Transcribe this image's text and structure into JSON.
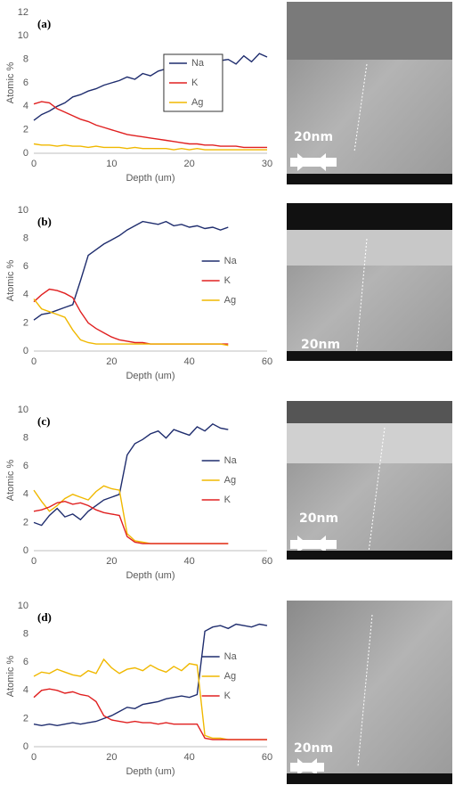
{
  "chart_data": [
    {
      "type": "line",
      "label": "(a)",
      "x_label": "Depth (um)",
      "y_label": "Atomic %",
      "legend": "center",
      "xlim": [
        0,
        30
      ],
      "xticks": [
        0,
        10,
        20,
        30
      ],
      "ylim": [
        0,
        12
      ],
      "yticks": [
        0,
        2,
        4,
        6,
        8,
        10,
        12
      ],
      "x": [
        0,
        1,
        2,
        3,
        4,
        5,
        6,
        7,
        8,
        9,
        10,
        11,
        12,
        13,
        14,
        15,
        16,
        17,
        18,
        19,
        20,
        21,
        22,
        23,
        24,
        25,
        26,
        27,
        28,
        29,
        30
      ],
      "series": [
        {
          "name": "Na",
          "color": "#1f2d6e",
          "values": [
            2.8,
            3.3,
            3.6,
            4.0,
            4.3,
            4.8,
            5.0,
            5.3,
            5.5,
            5.8,
            6.0,
            6.2,
            6.5,
            6.3,
            6.8,
            6.6,
            7.0,
            7.2,
            6.9,
            7.3,
            7.5,
            7.2,
            7.8,
            7.4,
            7.9,
            8.0,
            7.6,
            8.3,
            7.8,
            8.5,
            8.2
          ]
        },
        {
          "name": "K",
          "color": "#e02020",
          "values": [
            4.2,
            4.4,
            4.3,
            3.8,
            3.5,
            3.2,
            2.9,
            2.7,
            2.4,
            2.2,
            2.0,
            1.8,
            1.6,
            1.5,
            1.4,
            1.3,
            1.2,
            1.1,
            1.0,
            0.9,
            0.8,
            0.8,
            0.7,
            0.7,
            0.6,
            0.6,
            0.6,
            0.5,
            0.5,
            0.5,
            0.5
          ]
        },
        {
          "name": "Ag",
          "color": "#f0b800",
          "values": [
            0.8,
            0.7,
            0.7,
            0.6,
            0.7,
            0.6,
            0.6,
            0.5,
            0.6,
            0.5,
            0.5,
            0.5,
            0.4,
            0.5,
            0.4,
            0.4,
            0.4,
            0.4,
            0.3,
            0.4,
            0.3,
            0.4,
            0.3,
            0.3,
            0.3,
            0.3,
            0.3,
            0.3,
            0.3,
            0.3,
            0.3
          ]
        }
      ]
    },
    {
      "type": "line",
      "label": "(b)",
      "x_label": "Depth (um)",
      "y_label": "Atomic %",
      "legend": "right",
      "xlim": [
        0,
        60
      ],
      "xticks": [
        0,
        20,
        40,
        60
      ],
      "ylim": [
        0,
        10
      ],
      "yticks": [
        0,
        2,
        4,
        6,
        8,
        10
      ],
      "x": [
        0,
        2,
        4,
        6,
        8,
        10,
        12,
        14,
        16,
        18,
        20,
        22,
        24,
        26,
        28,
        30,
        32,
        34,
        36,
        38,
        40,
        42,
        44,
        46,
        48,
        50
      ],
      "series": [
        {
          "name": "Na",
          "color": "#1f2d6e",
          "values": [
            2.2,
            2.6,
            2.7,
            2.9,
            3.1,
            3.3,
            5.0,
            6.8,
            7.2,
            7.6,
            7.9,
            8.2,
            8.6,
            8.9,
            9.2,
            9.1,
            9.0,
            9.2,
            8.9,
            9.0,
            8.8,
            8.9,
            8.7,
            8.8,
            8.6,
            8.8
          ]
        },
        {
          "name": "K",
          "color": "#e02020",
          "values": [
            3.5,
            4.0,
            4.4,
            4.3,
            4.1,
            3.8,
            2.8,
            2.0,
            1.6,
            1.3,
            1.0,
            0.8,
            0.7,
            0.6,
            0.6,
            0.5,
            0.5,
            0.5,
            0.5,
            0.5,
            0.5,
            0.5,
            0.5,
            0.5,
            0.5,
            0.5
          ]
        },
        {
          "name": "Ag",
          "color": "#f0b800",
          "values": [
            3.7,
            3.0,
            2.8,
            2.6,
            2.4,
            1.5,
            0.8,
            0.6,
            0.5,
            0.5,
            0.5,
            0.5,
            0.5,
            0.5,
            0.5,
            0.5,
            0.5,
            0.5,
            0.5,
            0.5,
            0.5,
            0.5,
            0.5,
            0.5,
            0.5,
            0.4
          ]
        }
      ]
    },
    {
      "type": "line",
      "label": "(c)",
      "x_label": "Depth (um)",
      "y_label": "Atomic %",
      "legend": "right",
      "xlim": [
        0,
        60
      ],
      "xticks": [
        0,
        20,
        40,
        60
      ],
      "ylim": [
        0,
        10
      ],
      "yticks": [
        0,
        2,
        4,
        6,
        8,
        10
      ],
      "x": [
        0,
        2,
        4,
        6,
        8,
        10,
        12,
        14,
        16,
        18,
        20,
        22,
        24,
        26,
        28,
        30,
        32,
        34,
        36,
        38,
        40,
        42,
        44,
        46,
        48,
        50
      ],
      "series": [
        {
          "name": "Na",
          "color": "#1f2d6e",
          "values": [
            2.0,
            1.8,
            2.5,
            3.0,
            2.4,
            2.6,
            2.2,
            2.8,
            3.2,
            3.6,
            3.8,
            4.0,
            6.8,
            7.6,
            7.9,
            8.3,
            8.5,
            8.0,
            8.6,
            8.4,
            8.2,
            8.8,
            8.5,
            9.0,
            8.7,
            8.6
          ]
        },
        {
          "name": "Ag",
          "color": "#f0b800",
          "values": [
            4.3,
            3.5,
            2.8,
            3.2,
            3.7,
            4.0,
            3.8,
            3.6,
            4.2,
            4.6,
            4.4,
            4.3,
            1.2,
            0.7,
            0.6,
            0.5,
            0.5,
            0.5,
            0.5,
            0.5,
            0.5,
            0.5,
            0.5,
            0.5,
            0.5,
            0.5
          ]
        },
        {
          "name": "K",
          "color": "#e02020",
          "values": [
            2.8,
            2.9,
            3.1,
            3.4,
            3.5,
            3.3,
            3.4,
            3.2,
            2.9,
            2.7,
            2.6,
            2.5,
            1.0,
            0.6,
            0.5,
            0.5,
            0.5,
            0.5,
            0.5,
            0.5,
            0.5,
            0.5,
            0.5,
            0.5,
            0.5,
            0.5
          ]
        }
      ]
    },
    {
      "type": "line",
      "label": "(d)",
      "x_label": "Depth (um)",
      "y_label": "Atomic %",
      "legend": "right",
      "xlim": [
        0,
        60
      ],
      "xticks": [
        0,
        20,
        40,
        60
      ],
      "ylim": [
        0,
        10
      ],
      "yticks": [
        0,
        2,
        4,
        6,
        8,
        10
      ],
      "x": [
        0,
        2,
        4,
        6,
        8,
        10,
        12,
        14,
        16,
        18,
        20,
        22,
        24,
        26,
        28,
        30,
        32,
        34,
        36,
        38,
        40,
        42,
        44,
        46,
        48,
        50,
        52,
        54,
        56,
        58,
        60
      ],
      "series": [
        {
          "name": "Na",
          "color": "#1f2d6e",
          "values": [
            1.6,
            1.5,
            1.6,
            1.5,
            1.6,
            1.7,
            1.6,
            1.7,
            1.8,
            2.0,
            2.2,
            2.5,
            2.8,
            2.7,
            3.0,
            3.1,
            3.2,
            3.4,
            3.5,
            3.6,
            3.5,
            3.7,
            8.2,
            8.5,
            8.6,
            8.4,
            8.7,
            8.6,
            8.5,
            8.7,
            8.6
          ]
        },
        {
          "name": "Ag",
          "color": "#f0b800",
          "values": [
            5.0,
            5.3,
            5.2,
            5.5,
            5.3,
            5.1,
            5.0,
            5.4,
            5.2,
            6.2,
            5.6,
            5.2,
            5.5,
            5.6,
            5.4,
            5.8,
            5.5,
            5.3,
            5.7,
            5.4,
            5.9,
            5.8,
            0.8,
            0.6,
            0.6,
            0.5,
            0.5,
            0.5,
            0.5,
            0.5,
            0.5
          ]
        },
        {
          "name": "K",
          "color": "#e02020",
          "values": [
            3.5,
            4.0,
            4.1,
            4.0,
            3.8,
            3.9,
            3.7,
            3.6,
            3.2,
            2.2,
            1.9,
            1.8,
            1.7,
            1.8,
            1.7,
            1.7,
            1.6,
            1.7,
            1.6,
            1.6,
            1.6,
            1.6,
            0.6,
            0.5,
            0.5,
            0.5,
            0.5,
            0.5,
            0.5,
            0.5,
            0.5
          ]
        }
      ]
    }
  ],
  "images": [
    {
      "scale_label": "20nm"
    },
    {
      "scale_label": "20nm"
    },
    {
      "scale_label": "20nm"
    },
    {
      "scale_label": "20nm"
    }
  ]
}
